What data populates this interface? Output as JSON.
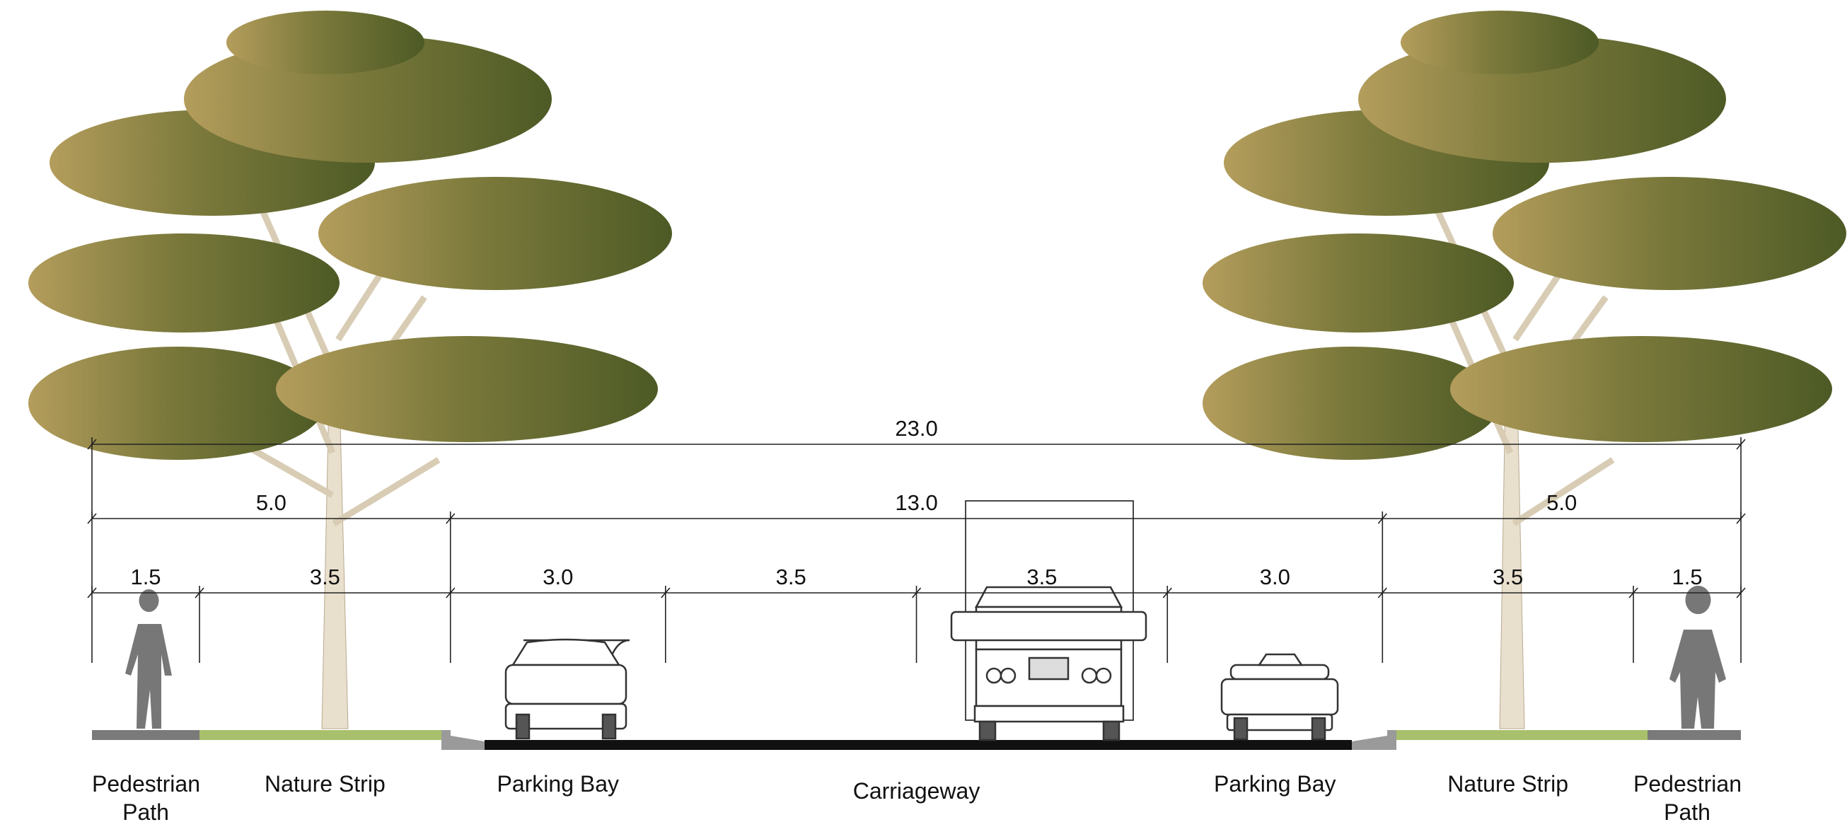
{
  "dimensions": {
    "overall": [
      "23.0"
    ],
    "groups": [
      "5.0",
      "13.0",
      "5.0"
    ]
  },
  "zones": [
    {
      "name": "Pedestrian Path",
      "widths": [
        "1.5"
      ]
    },
    {
      "name": "Nature Strip",
      "widths": [
        "3.5"
      ]
    },
    {
      "name": "Parking Bay",
      "widths": [
        "3.0"
      ]
    },
    {
      "name": "Carriageway",
      "widths": [
        "3.5",
        "3.5"
      ]
    },
    {
      "name": "Parking Bay",
      "widths": [
        "3.0"
      ]
    },
    {
      "name": "Nature Strip",
      "widths": [
        "3.5"
      ]
    },
    {
      "name": "Pedestrian Path",
      "widths": [
        "1.5"
      ]
    }
  ]
}
